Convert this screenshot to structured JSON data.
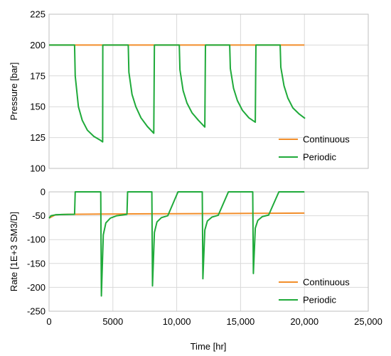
{
  "chart_data": {
    "type": "line",
    "grid": true,
    "colors": {
      "Continuous": "#f28e2b",
      "Periodic": "#1faa3a"
    },
    "shared_xlabel": "Time [hr]",
    "x_ticks": [
      0,
      5000,
      10000,
      15000,
      20000,
      25000
    ],
    "x_tick_labels": [
      "0",
      "5000",
      "10,000",
      "15,000",
      "20,000",
      "25,000"
    ],
    "charts": [
      {
        "ylabel": "Pressure [bar]",
        "ylim": [
          100,
          225
        ],
        "xlim": [
          0,
          25000
        ],
        "y_ticks": [
          100,
          125,
          150,
          175,
          200,
          225
        ],
        "y_tick_labels": [
          "100",
          "125",
          "150",
          "175",
          "200",
          "225"
        ],
        "legend_position": "bottom-right",
        "series": [
          {
            "name": "Continuous",
            "x": [
              0,
              20000
            ],
            "y": [
              200,
              200
            ]
          },
          {
            "name": "Periodic",
            "x": [
              0,
              2000,
              2050,
              2300,
              2600,
              3000,
              3500,
              4000,
              4200,
              4210,
              6200,
              6250,
              6500,
              6800,
              7200,
              7700,
              8200,
              8250,
              10200,
              10250,
              10500,
              10800,
              11200,
              11700,
              12200,
              12250,
              14150,
              14200,
              14450,
              14750,
              15150,
              15650,
              16150,
              16200,
              18100,
              18150,
              18400,
              18700,
              19100,
              19600,
              20050
            ],
            "y": [
              200,
              200,
              175,
              150,
              139,
              131,
              126,
              123,
              121.5,
              200,
              200,
              178,
              160,
              150,
              141,
              134,
              128.5,
              200,
              200,
              180,
              163,
              153,
              145,
              139,
              133.5,
              200,
              200,
              181,
              165,
              155,
              147,
              141,
              137.5,
              200,
              200,
              182,
              167,
              157,
              149,
              144,
              140.5
            ]
          }
        ]
      },
      {
        "ylabel": "Rate [1E+3 SM3/D]",
        "ylim": [
          -250,
          0
        ],
        "xlim": [
          0,
          25000
        ],
        "y_ticks": [
          -250,
          -200,
          -150,
          -100,
          -50,
          0
        ],
        "y_tick_labels": [
          "-250",
          "-200",
          "-150",
          "-100",
          "-50",
          "0"
        ],
        "legend_position": "bottom-right",
        "series": [
          {
            "name": "Continuous",
            "x": [
              0,
              500,
              1500,
              4000,
              8000,
              12000,
              16000,
              20000
            ],
            "y": [
              -55,
              -48,
              -47,
              -46.5,
              -46,
              -45.5,
              -45,
              -44.5
            ]
          },
          {
            "name": "Periodic",
            "x": [
              0,
              150,
              500,
              1000,
              2000,
              2050,
              4050,
              4100,
              4250,
              4450,
              4800,
              5300,
              6100,
              6150,
              8050,
              8100,
              8250,
              8450,
              8800,
              9300,
              10100,
              10150,
              12000,
              12050,
              12200,
              12400,
              12750,
              13250,
              14050,
              14100,
              15950,
              16000,
              16150,
              16350,
              16700,
              17200,
              18000,
              18050,
              20000
            ],
            "y": [
              -55,
              -50,
              -48,
              -47.5,
              -47,
              0,
              0,
              -218,
              -90,
              -65,
              -55,
              -50,
              -47,
              0,
              0,
              -197,
              -85,
              -63,
              -54,
              -50,
              0,
              0,
              0,
              -182,
              -80,
              -61,
              -53,
              -49,
              0,
              0,
              0,
              -171,
              -76,
              -60,
              -52,
              -48.5,
              0,
              0,
              0
            ]
          }
        ]
      }
    ]
  }
}
